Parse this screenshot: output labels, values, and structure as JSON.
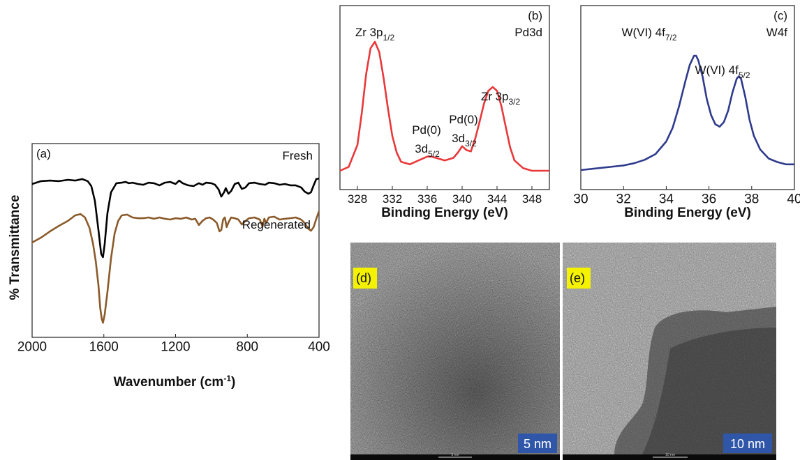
{
  "chart_data": [
    {
      "panel": "(a)",
      "type": "line",
      "xlabel": "Wavenumber (cm",
      "xlabel_sup": "-1",
      "xlabel_tail": ")",
      "ylabel": "% Transmittance",
      "xlim": [
        2000,
        400
      ],
      "xticks": [
        "2000",
        "1600",
        "1200",
        "800",
        "400"
      ],
      "grid": false,
      "series": [
        {
          "name": "Fresh",
          "color": "#000000",
          "x": [
            2000,
            1950,
            1900,
            1850,
            1800,
            1760,
            1720,
            1690,
            1670,
            1650,
            1630,
            1615,
            1605,
            1595,
            1580,
            1560,
            1530,
            1500,
            1480,
            1460,
            1440,
            1410,
            1380,
            1350,
            1320,
            1290,
            1260,
            1230,
            1200,
            1180,
            1160,
            1130,
            1100,
            1070,
            1050,
            1030,
            1000,
            980,
            960,
            945,
            930,
            920,
            905,
            890,
            870,
            850,
            830,
            810,
            790,
            760,
            730,
            700,
            680,
            650,
            620,
            590,
            560,
            530,
            500,
            480,
            460,
            445,
            430,
            415,
            400
          ],
          "y": [
            84.0,
            86.7,
            87.3,
            86.7,
            88.0,
            87.3,
            88.7,
            86.7,
            82.0,
            68.0,
            40.0,
            17.3,
            14.0,
            26.7,
            56.0,
            76.0,
            84.7,
            85.3,
            86.0,
            84.7,
            85.3,
            84.0,
            83.3,
            85.3,
            84.7,
            82.7,
            85.3,
            86.0,
            84.0,
            87.3,
            84.7,
            82.7,
            82.0,
            84.7,
            83.3,
            85.3,
            84.7,
            83.3,
            78.7,
            72.0,
            76.0,
            80.0,
            74.7,
            77.3,
            84.0,
            85.3,
            79.3,
            80.7,
            84.7,
            85.3,
            84.0,
            83.3,
            85.3,
            84.7,
            83.3,
            84.0,
            82.7,
            82.7,
            80.7,
            76.7,
            74.7,
            76.0,
            82.7,
            88.7,
            89.3
          ]
        },
        {
          "name": "Regenerated",
          "color": "#8B5A2B",
          "x": [
            2000,
            1950,
            1900,
            1850,
            1800,
            1760,
            1730,
            1705,
            1680,
            1660,
            1645,
            1630,
            1620,
            1612,
            1605,
            1595,
            1580,
            1560,
            1540,
            1520,
            1500,
            1470,
            1440,
            1410,
            1380,
            1350,
            1320,
            1290,
            1260,
            1230,
            1200,
            1170,
            1140,
            1110,
            1090,
            1070,
            1050,
            1030,
            1010,
            990,
            970,
            955,
            945,
            935,
            925,
            915,
            905,
            890,
            870,
            850,
            830,
            810,
            790,
            760,
            730,
            715,
            705,
            695,
            680,
            650,
            620,
            590,
            560,
            530,
            500,
            480,
            460,
            445,
            430,
            415,
            400
          ],
          "y": [
            28.0,
            32.7,
            38.7,
            44.0,
            48.7,
            54.0,
            55.3,
            52.0,
            42.0,
            26.7,
            10.0,
            -12.7,
            -34.7,
            -44.7,
            -48.7,
            -40.7,
            -19.3,
            12.7,
            36.7,
            48.7,
            54.0,
            54.7,
            52.0,
            51.3,
            51.3,
            52.0,
            50.7,
            52.0,
            50.7,
            50.0,
            51.3,
            50.7,
            52.0,
            50.0,
            50.7,
            44.7,
            48.7,
            51.3,
            52.0,
            50.0,
            46.7,
            38.7,
            40.0,
            50.0,
            52.0,
            42.7,
            47.3,
            52.0,
            51.3,
            50.0,
            45.3,
            48.7,
            51.3,
            52.0,
            50.0,
            43.3,
            50.7,
            46.7,
            52.0,
            52.7,
            50.0,
            50.7,
            51.3,
            52.0,
            50.0,
            46.7,
            41.3,
            39.3,
            42.7,
            50.7,
            58.0
          ]
        }
      ]
    },
    {
      "panel": "(b)",
      "type": "line",
      "title": "Pd3d",
      "xlabel": "Binding Energy (eV)",
      "xlim": [
        326,
        350
      ],
      "xticks": [
        "328",
        "332",
        "336",
        "340",
        "344",
        "348"
      ],
      "grid": false,
      "series": [
        {
          "color": "#E8383A",
          "x": [
            326,
            327,
            328,
            328.5,
            329,
            329.5,
            330,
            330.5,
            331,
            331.5,
            332,
            332.5,
            333,
            334,
            335,
            336,
            336.5,
            337,
            338,
            339,
            339.5,
            340,
            340.5,
            341,
            341.5,
            342,
            342.5,
            343,
            343.5,
            344,
            344.5,
            345,
            345.5,
            346,
            347,
            348,
            349,
            350
          ],
          "y": [
            0.0,
            0.03,
            0.2,
            0.45,
            0.75,
            0.95,
            1.0,
            0.92,
            0.72,
            0.48,
            0.27,
            0.14,
            0.07,
            0.05,
            0.08,
            0.11,
            0.11,
            0.1,
            0.08,
            0.1,
            0.14,
            0.19,
            0.16,
            0.15,
            0.25,
            0.38,
            0.52,
            0.62,
            0.65,
            0.62,
            0.5,
            0.34,
            0.18,
            0.08,
            0.02,
            0.0,
            0.0,
            0.0
          ]
        }
      ],
      "annotations": [
        {
          "text": "Zr 3p",
          "sub": "1/2"
        },
        {
          "text": "Pd(0)",
          "line2": "3d",
          "sub": "5/2"
        },
        {
          "text": "Pd(0)",
          "line2": "3d",
          "sub": "3/2"
        },
        {
          "text": "Zr 3p",
          "sub": "3/2"
        }
      ]
    },
    {
      "panel": "(c)",
      "type": "line",
      "title": "W4f",
      "xlabel": "Binding Energy (eV)",
      "xlim": [
        30,
        40
      ],
      "xticks": [
        "30",
        "32",
        "34",
        "36",
        "38",
        "40"
      ],
      "grid": false,
      "series": [
        {
          "color": "#2E3A8C",
          "x": [
            30,
            31,
            32,
            32.5,
            33,
            33.5,
            34,
            34.3,
            34.6,
            34.9,
            35.1,
            35.3,
            35.4,
            35.5,
            35.7,
            35.9,
            36.1,
            36.3,
            36.5,
            36.7,
            36.9,
            37.1,
            37.3,
            37.4,
            37.5,
            37.7,
            37.9,
            38.1,
            38.4,
            38.8,
            39.2,
            39.6,
            40
          ],
          "y": [
            0.0,
            0.02,
            0.04,
            0.06,
            0.09,
            0.14,
            0.25,
            0.37,
            0.56,
            0.78,
            0.92,
            1.0,
            1.0,
            0.96,
            0.82,
            0.62,
            0.48,
            0.4,
            0.38,
            0.42,
            0.52,
            0.68,
            0.8,
            0.82,
            0.8,
            0.64,
            0.44,
            0.3,
            0.18,
            0.1,
            0.07,
            0.05,
            0.05
          ]
        }
      ],
      "annotations": [
        {
          "text": "W(VI) 4f",
          "sub": "7/2"
        },
        {
          "text": "W(VI) 4f",
          "sub": "5/2"
        }
      ]
    }
  ],
  "images": [
    {
      "panel": "(d)",
      "scale_label": "5 nm",
      "caption_text": "5 nm"
    },
    {
      "panel": "(e)",
      "scale_label": "10 nm",
      "caption_text": "10 nm"
    }
  ],
  "colors": {
    "panel_label_bg": "#F4F200",
    "scale_label_bg": "#2F56A8"
  }
}
